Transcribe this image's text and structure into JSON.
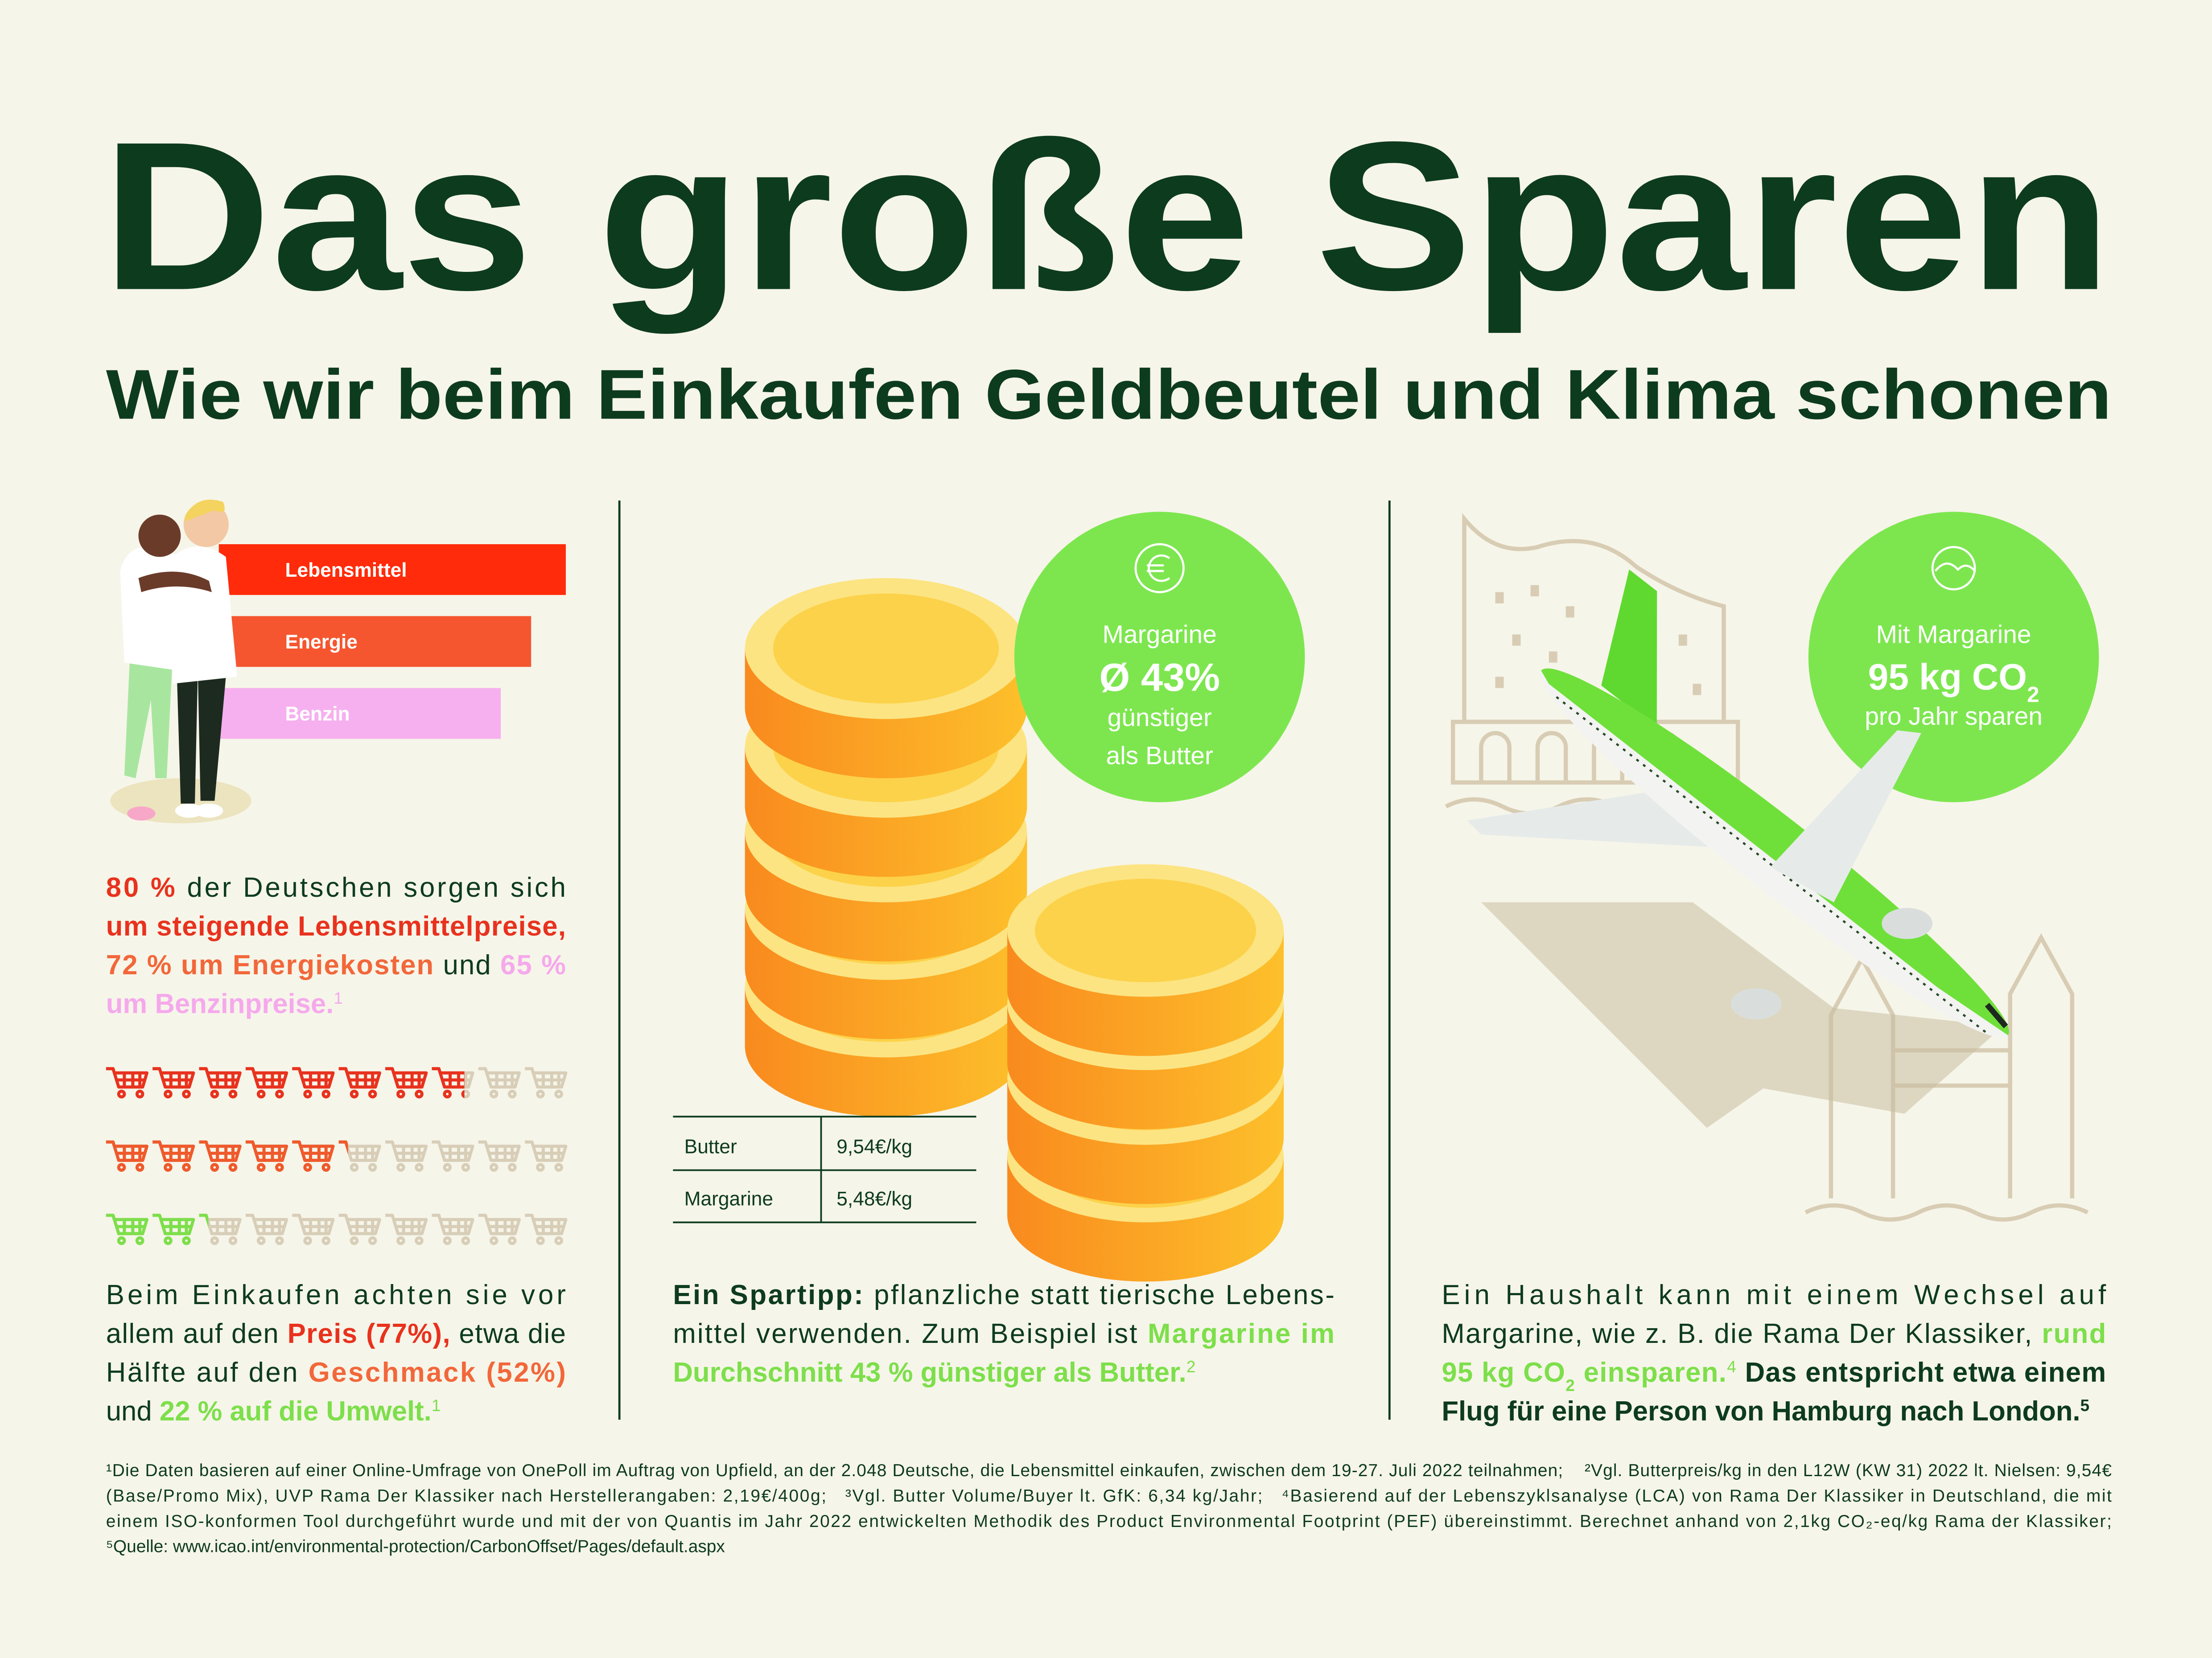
{
  "header": {
    "title": "Das große Sparen",
    "subtitle": "Wie wir beim Einkaufen Geldbeutel und Klima schonen"
  },
  "chart_data": [
    {
      "type": "bar",
      "orientation": "horizontal",
      "categories": [
        "Lebensmittel",
        "Energie",
        "Benzin"
      ],
      "values": [
        80,
        72,
        65
      ],
      "colors": [
        "#ff2b0a",
        "#f5562f",
        "#f6b0ef"
      ],
      "xlim": [
        0,
        100
      ]
    },
    {
      "type": "pictogram",
      "values": [
        77,
        52,
        22
      ],
      "colors": [
        "#e8321e",
        "#ef5a2c",
        "#7ddf4b"
      ],
      "empty_color": "#d8ceb8",
      "xlim": [
        0,
        100
      ]
    }
  ],
  "left": {
    "statement": {
      "lines": [
        [
          {
            "text": "80 %",
            "color": "#e8321e",
            "bold": true
          },
          {
            "text": " der Deutschen sorgen sich"
          }
        ],
        [
          {
            "text": "um steigende Lebensmittelpreise,",
            "color": "#e8321e",
            "bold": true
          }
        ],
        [
          {
            "text": "72 % um Energiekosten",
            "color": "#f2673a",
            "bold": true
          },
          {
            "text": " und "
          },
          {
            "text": "65 %",
            "color": "#f5a9ec",
            "bold": true
          }
        ],
        [
          {
            "text": "um Benzinpreise.",
            "color": "#f5a9ec",
            "bold": true
          },
          {
            "text": "1",
            "color": "#f5a9ec",
            "shift": "super"
          }
        ]
      ]
    },
    "attention": {
      "lines": [
        [
          {
            "text": "Beim Einkaufen achten sie vor"
          }
        ],
        [
          {
            "text": "allem auf den "
          },
          {
            "text": "Preis (77%),",
            "color": "#e8321e",
            "bold": true
          },
          {
            "text": " etwa die"
          }
        ],
        [
          {
            "text": "Hälfte auf den "
          },
          {
            "text": "Geschmack (52%)",
            "color": "#f2673a",
            "bold": true
          }
        ],
        [
          {
            "text": "und "
          },
          {
            "text": "22 % auf die Umwelt.",
            "color": "#7ddf4b",
            "bold": true
          },
          {
            "text": "1",
            "color": "#7ddf4b",
            "shift": "super"
          }
        ]
      ]
    }
  },
  "middle": {
    "badge": {
      "lines": [
        [
          {
            "text": "Margarine"
          }
        ],
        [
          {
            "text": "Ø 43%",
            "bold": true
          }
        ],
        [
          {
            "text": "günstiger"
          }
        ],
        [
          {
            "text": "als Butter"
          }
        ]
      ]
    },
    "table": {
      "rows": [
        [
          "Butter",
          "9,54€/kg"
        ],
        [
          "Margarine",
          "5,48€/kg"
        ]
      ]
    },
    "tip": {
      "lines": [
        [
          {
            "text": "Ein Spartipp:",
            "bold": true
          },
          {
            "text": " pflanzliche statt tierische Lebens-"
          }
        ],
        [
          {
            "text": "mittel verwenden. Zum Beispiel ist "
          },
          {
            "text": "Margarine im",
            "color": "#7ddf4b",
            "bold": true
          }
        ],
        [
          {
            "text": "Durchschnitt 43 % günstiger als Butter.",
            "color": "#7ddf4b",
            "bold": true
          },
          {
            "text": "2",
            "color": "#7ddf4b",
            "shift": "super"
          }
        ]
      ]
    }
  },
  "right": {
    "badge": {
      "lines": [
        [
          {
            "text": "Mit Margarine"
          }
        ],
        [
          {
            "text": "95 kg CO",
            "bold": true
          },
          {
            "text": "2",
            "bold": true,
            "shift": "sub"
          }
        ],
        [
          {
            "text": "pro Jahr sparen"
          }
        ]
      ]
    },
    "text": {
      "lines": [
        [
          {
            "text": "Ein Haushalt kann mit einem Wechsel auf"
          }
        ],
        [
          {
            "text": "Margarine, wie z. B. die Rama Der Klassiker, "
          },
          {
            "text": "rund",
            "color": "#7ddf4b",
            "bold": true
          }
        ],
        [
          {
            "text": "95 kg CO",
            "color": "#7ddf4b",
            "bold": true
          },
          {
            "text": "2",
            "color": "#7ddf4b",
            "bold": true,
            "shift": "sub"
          },
          {
            "text": " einsparen.",
            "color": "#7ddf4b",
            "bold": true
          },
          {
            "text": "4",
            "color": "#7ddf4b",
            "shift": "super"
          },
          {
            "text": " Das entspricht etwa einem",
            "bold": true
          }
        ],
        [
          {
            "text": "Flug für eine Person von Hamburg nach London.",
            "bold": true
          },
          {
            "text": "5",
            "bold": true,
            "shift": "super"
          }
        ]
      ]
    }
  },
  "footnotes": {
    "lines": [
      "¹Die Daten basieren auf einer Online-Umfrage von OnePoll im Auftrag von Upfield, an der 2.048 Deutsche, die Lebensmittel einkaufen, zwischen dem 19-27. Juli 2022 teilnahmen;    ²Vgl. Butterpreis/kg in den L12W (KW 31) 2022 lt. Nielsen: 9,54€",
      "(Base/Promo Mix), UVP Rama Der Klassiker nach Herstellerangaben: 2,19€/400g;   ³Vgl. Butter Volume/Buyer lt. GfK: 6,34 kg/Jahr;   ⁴Basierend auf der Lebenszyklsanalyse (LCA) von Rama Der Klassiker in Deutschland, die mit",
      "einem ISO-konformen Tool durchgeführt wurde und mit der von Quantis im Jahr 2022 entwickelten Methodik des Product Environmental Footprint (PEF) übereinstimmt. Berechnet anhand von 2,1kg CO₂-eq/kg Rama der Klassiker;",
      "⁵Quelle: www.icao.int/environmental-protection/CarbonOffset/Pages/default.aspx"
    ]
  }
}
